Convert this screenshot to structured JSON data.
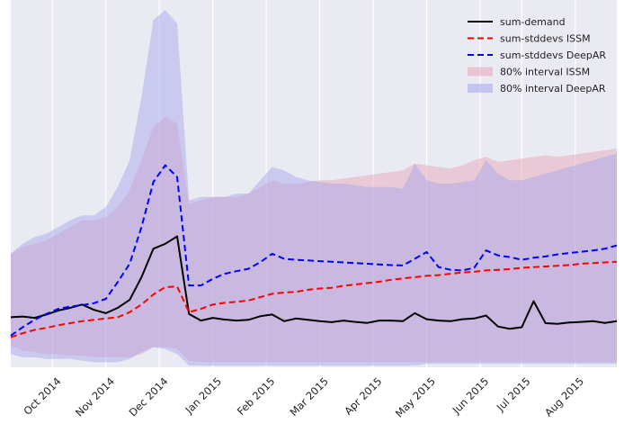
{
  "chart_data": {
    "type": "line",
    "title": "",
    "xlabel": "",
    "ylabel": "",
    "grid": true,
    "legend_position": "top-right",
    "x": [
      0,
      1,
      2,
      3,
      4,
      5,
      6,
      7,
      8,
      9,
      10,
      11,
      12,
      13,
      14,
      15,
      16,
      17,
      18,
      19,
      20,
      21,
      22,
      23,
      24,
      25,
      26,
      27,
      28,
      29,
      30,
      31,
      32,
      33,
      34,
      35,
      36,
      37,
      38,
      39,
      40,
      41,
      42,
      43,
      44,
      45,
      46,
      47,
      48,
      49,
      50,
      51
    ],
    "xlim": [
      0,
      51
    ],
    "ylim": [
      -0.6,
      10.4
    ],
    "x_ticks": [
      {
        "label": "Oct 2014",
        "x": 3.5
      },
      {
        "label": "Nov 2014",
        "x": 8.0
      },
      {
        "label": "Dec 2014",
        "x": 12.5
      },
      {
        "label": "Jan 2015",
        "x": 17.0
      },
      {
        "label": "Feb 2015",
        "x": 21.5
      },
      {
        "label": "Mar 2015",
        "x": 26.0
      },
      {
        "label": "Apr 2015",
        "x": 30.5
      },
      {
        "label": "May 2015",
        "x": 35.0
      },
      {
        "label": "Jun 2015",
        "x": 39.5
      },
      {
        "label": "Jul 2015",
        "x": 43.0
      },
      {
        "label": "Aug 2015",
        "x": 47.5
      }
    ],
    "series": [
      {
        "name": "sum-demand",
        "style": "solid",
        "color": "#000000",
        "values": [
          0.9,
          0.92,
          0.88,
          0.98,
          1.1,
          1.18,
          1.28,
          1.12,
          1.02,
          1.18,
          1.42,
          2.1,
          2.95,
          3.1,
          3.32,
          1.0,
          0.8,
          0.88,
          0.83,
          0.8,
          0.82,
          0.93,
          0.98,
          0.78,
          0.86,
          0.82,
          0.78,
          0.75,
          0.8,
          0.76,
          0.73,
          0.8,
          0.8,
          0.78,
          1.02,
          0.84,
          0.8,
          0.78,
          0.84,
          0.86,
          0.95,
          0.62,
          0.55,
          0.6,
          1.38,
          0.72,
          0.7,
          0.74,
          0.76,
          0.78,
          0.73,
          0.78
        ]
      },
      {
        "name": "sum-stddevs ISSM",
        "style": "dashed",
        "color": "#ff0000",
        "values": [
          0.3,
          0.42,
          0.52,
          0.58,
          0.66,
          0.72,
          0.78,
          0.82,
          0.86,
          0.9,
          1.05,
          1.28,
          1.58,
          1.8,
          1.82,
          1.05,
          1.15,
          1.28,
          1.33,
          1.36,
          1.4,
          1.5,
          1.6,
          1.64,
          1.66,
          1.72,
          1.76,
          1.78,
          1.84,
          1.88,
          1.92,
          1.96,
          2.02,
          2.06,
          2.1,
          2.14,
          2.16,
          2.2,
          2.24,
          2.26,
          2.3,
          2.32,
          2.34,
          2.38,
          2.4,
          2.42,
          2.44,
          2.46,
          2.5,
          2.52,
          2.54,
          2.56
        ]
      },
      {
        "name": "sum-stddevs DeepAR",
        "style": "dashed",
        "color": "#0000ff",
        "values": [
          0.35,
          0.6,
          0.82,
          1.0,
          1.15,
          1.22,
          1.26,
          1.32,
          1.45,
          1.95,
          2.5,
          3.6,
          4.95,
          5.45,
          5.1,
          1.85,
          1.85,
          2.05,
          2.2,
          2.28,
          2.35,
          2.55,
          2.8,
          2.65,
          2.62,
          2.6,
          2.58,
          2.56,
          2.54,
          2.52,
          2.5,
          2.48,
          2.46,
          2.45,
          2.65,
          2.85,
          2.4,
          2.32,
          2.3,
          2.38,
          2.9,
          2.75,
          2.7,
          2.62,
          2.68,
          2.72,
          2.78,
          2.82,
          2.86,
          2.9,
          2.95,
          3.05
        ]
      }
    ],
    "intervals": [
      {
        "name": "80% interval ISSM",
        "color": "#e8a8b8",
        "lower": [
          0.05,
          -0.1,
          -0.15,
          -0.2,
          -0.22,
          -0.25,
          -0.25,
          -0.3,
          -0.3,
          -0.3,
          -0.3,
          -0.2,
          0.0,
          0.0,
          -0.05,
          -0.4,
          -0.45,
          -0.45,
          -0.45,
          -0.45,
          -0.45,
          -0.45,
          -0.45,
          -0.45,
          -0.45,
          -0.45,
          -0.45,
          -0.45,
          -0.45,
          -0.45,
          -0.45,
          -0.45,
          -0.45,
          -0.45,
          -0.45,
          -0.45,
          -0.45,
          -0.45,
          -0.45,
          -0.45,
          -0.45,
          -0.45,
          -0.45,
          -0.45,
          -0.45,
          -0.45,
          -0.45,
          -0.45,
          -0.45,
          -0.45,
          -0.45,
          -0.45
        ],
        "upper": [
          2.8,
          3.0,
          3.1,
          3.2,
          3.4,
          3.6,
          3.8,
          3.8,
          3.9,
          4.2,
          4.7,
          5.6,
          6.6,
          6.9,
          6.7,
          4.3,
          4.4,
          4.5,
          4.5,
          4.5,
          4.6,
          4.8,
          5.0,
          4.9,
          4.9,
          4.95,
          5.0,
          5.0,
          5.05,
          5.1,
          5.15,
          5.2,
          5.25,
          5.3,
          5.5,
          5.45,
          5.4,
          5.35,
          5.45,
          5.6,
          5.7,
          5.55,
          5.6,
          5.65,
          5.7,
          5.75,
          5.7,
          5.75,
          5.8,
          5.85,
          5.9,
          5.95
        ]
      },
      {
        "name": "80% interval DeepAR",
        "color": "#aaaaee",
        "lower": [
          -0.2,
          -0.3,
          -0.3,
          -0.35,
          -0.35,
          -0.35,
          -0.4,
          -0.45,
          -0.45,
          -0.45,
          -0.35,
          -0.15,
          0.0,
          -0.05,
          -0.2,
          -0.55,
          -0.55,
          -0.55,
          -0.55,
          -0.55,
          -0.55,
          -0.55,
          -0.55,
          -0.55,
          -0.55,
          -0.55,
          -0.55,
          -0.55,
          -0.55,
          -0.55,
          -0.55,
          -0.55,
          -0.55,
          -0.55,
          -0.55,
          -0.5,
          -0.5,
          -0.5,
          -0.5,
          -0.5,
          -0.5,
          -0.5,
          -0.5,
          -0.5,
          -0.5,
          -0.5,
          -0.5,
          -0.5,
          -0.5,
          -0.5,
          -0.5,
          -0.5
        ],
        "upper": [
          2.8,
          3.1,
          3.3,
          3.4,
          3.6,
          3.8,
          3.95,
          3.95,
          4.2,
          4.8,
          5.6,
          7.5,
          9.8,
          10.1,
          9.7,
          4.4,
          4.5,
          4.5,
          4.5,
          4.6,
          4.6,
          5.0,
          5.4,
          5.3,
          5.1,
          5.0,
          4.95,
          4.9,
          4.9,
          4.85,
          4.8,
          4.8,
          4.8,
          4.75,
          5.5,
          5.0,
          4.9,
          4.9,
          4.95,
          5.0,
          5.6,
          5.2,
          5.0,
          5.0,
          5.1,
          5.2,
          5.3,
          5.4,
          5.5,
          5.6,
          5.7,
          5.8
        ]
      }
    ]
  },
  "colors": {
    "background": "#eaeaf2",
    "grid": "#ffffff",
    "demand": "#000000",
    "issm": "#ff0000",
    "deepar": "#0000ff"
  }
}
